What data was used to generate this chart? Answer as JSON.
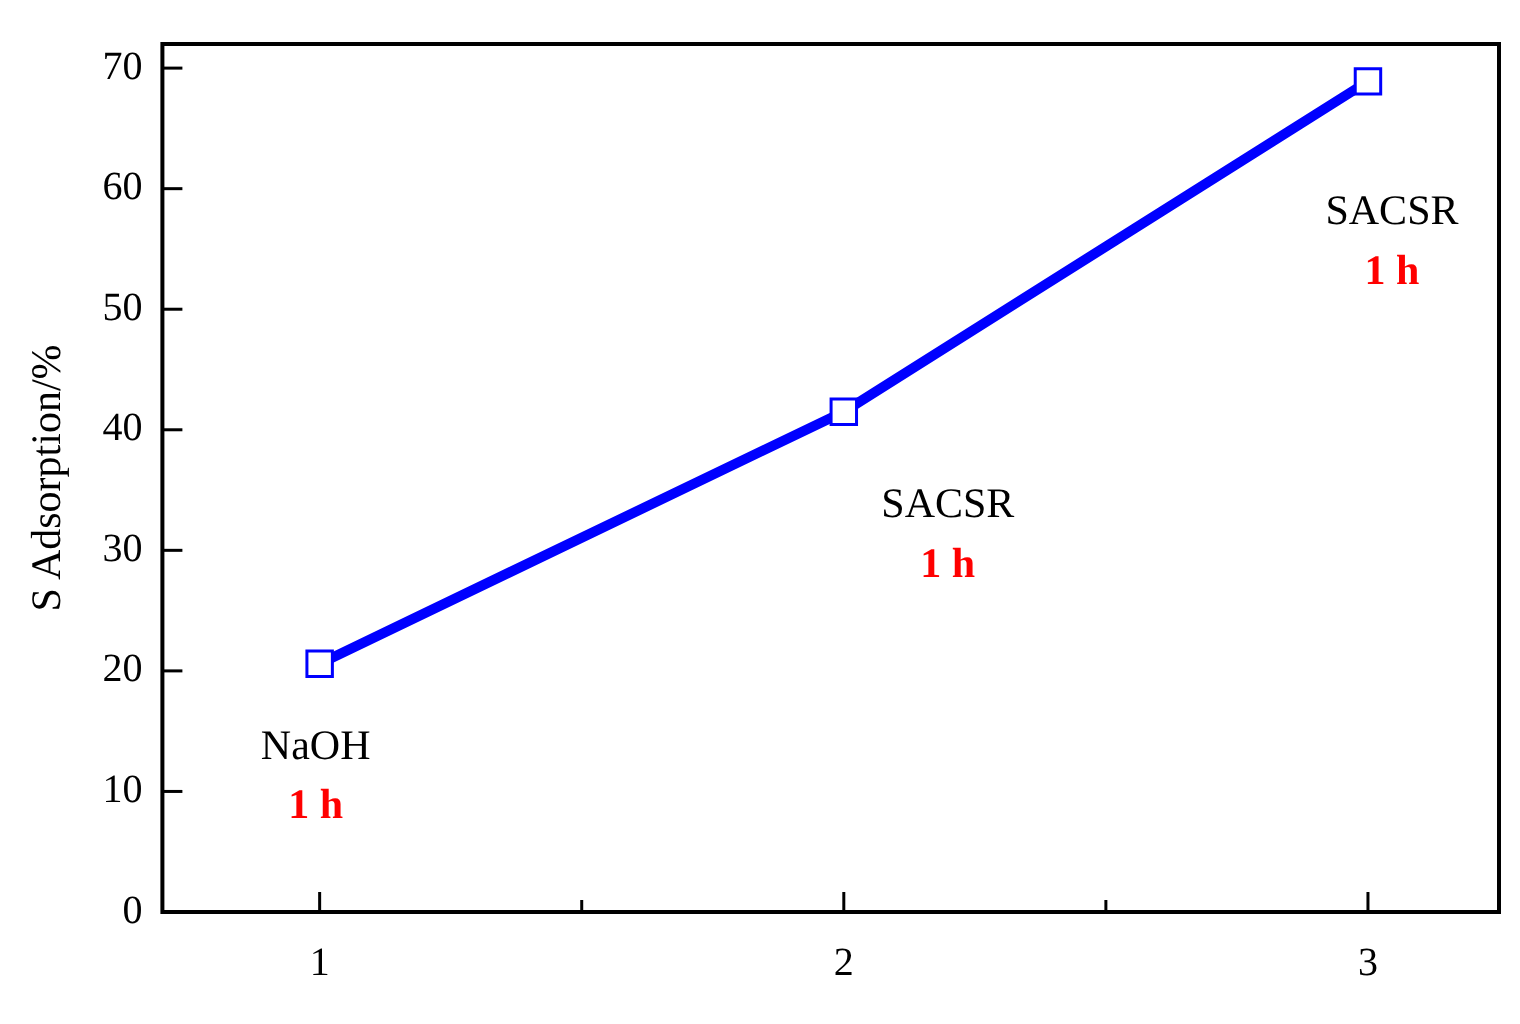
{
  "chart_data": {
    "type": "line",
    "ylabel": "S Adsorption/%",
    "x": [
      1,
      2,
      3
    ],
    "series": [
      {
        "color": "#0000ff",
        "values": [
          20.6,
          41.5,
          68.9
        ]
      }
    ],
    "xlim": [
      0.7,
      3.25
    ],
    "xticks": [
      1,
      {
        "value": 1.5,
        "label": null
      },
      2,
      {
        "value": 2.5,
        "label": null
      },
      3
    ],
    "ylim": [
      0,
      72
    ],
    "yticks": [
      0,
      10,
      20,
      30,
      40,
      50,
      60,
      70
    ],
    "grid": false,
    "legend": false,
    "marker": "square",
    "line_style": "solid",
    "annotations": [
      "NaOH",
      "1 h",
      "SACSR",
      "1 h",
      "SACSR",
      "1 h"
    ]
  }
}
